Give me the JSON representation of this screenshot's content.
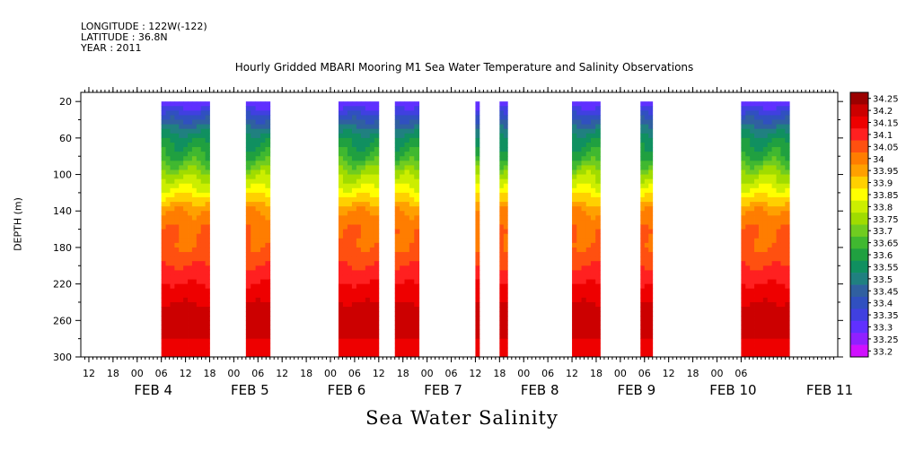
{
  "header": {
    "longitude": "LONGITUDE : 122W(-122)",
    "latitude": "LATITUDE : 36.8N",
    "year": "YEAR : 2011"
  },
  "chart_data": {
    "type": "heatmap",
    "title": "Hourly Gridded MBARI Mooring M1 Sea Water Temperature and Salinity Observations",
    "bottom_title": "Sea Water Salinity",
    "ylabel": "DEPTH (m)",
    "y_ticks": [
      20,
      60,
      100,
      140,
      180,
      220,
      260,
      300
    ],
    "ylim": [
      300,
      10
    ],
    "x_hour_labels": [
      "12",
      "18",
      "00",
      "06",
      "12",
      "18",
      "00",
      "06",
      "12",
      "18",
      "00",
      "06",
      "12",
      "18",
      "00",
      "06",
      "12",
      "18",
      "00",
      "06",
      "12",
      "18",
      "00",
      "06",
      "12",
      "18",
      "00",
      "06"
    ],
    "x_day_labels": [
      "FEB 4",
      "FEB 5",
      "FEB 6",
      "FEB 7",
      "FEB 8",
      "FEB 9",
      "FEB 10",
      "FEB 11"
    ],
    "x_range_hours": [
      -14,
      174
    ],
    "x_day_label_hours": [
      4,
      28,
      52,
      76,
      100,
      124,
      148,
      172
    ],
    "data_blocks_hours": [
      [
        6,
        18
      ],
      [
        27,
        33
      ],
      [
        50,
        60
      ],
      [
        64,
        70
      ],
      [
        84,
        85
      ],
      [
        90,
        92
      ],
      [
        108,
        115
      ],
      [
        125,
        128
      ],
      [
        150,
        162
      ]
    ],
    "colorbar": {
      "levels": [
        "34.25",
        "34.2",
        "34.15",
        "34.1",
        "34.05",
        "34",
        "33.95",
        "33.9",
        "33.85",
        "33.8",
        "33.75",
        "33.7",
        "33.65",
        "33.6",
        "33.55",
        "33.5",
        "33.45",
        "33.4",
        "33.35",
        "33.3",
        "33.25",
        "33.2"
      ],
      "colors": [
        "#9b0000",
        "#cc0000",
        "#ee0000",
        "#ff2020",
        "#ff5010",
        "#ff7d00",
        "#ffa000",
        "#ffd000",
        "#ffff00",
        "#ccee00",
        "#a0dc00",
        "#70cc20",
        "#40b830",
        "#20a040",
        "#109060",
        "#208080",
        "#3060a0",
        "#3050c0",
        "#4040e0",
        "#6030ff",
        "#9020ff",
        "#d010ff"
      ]
    },
    "profile_depths": [
      20,
      40,
      60,
      80,
      100,
      120,
      140,
      160,
      180,
      200,
      220,
      240,
      260,
      280,
      300
    ],
    "profile_salinity": [
      33.3,
      33.45,
      33.58,
      33.65,
      33.78,
      33.88,
      34.0,
      34.05,
      34.05,
      34.1,
      34.15,
      34.2,
      34.23,
      34.2,
      34.15
    ]
  }
}
